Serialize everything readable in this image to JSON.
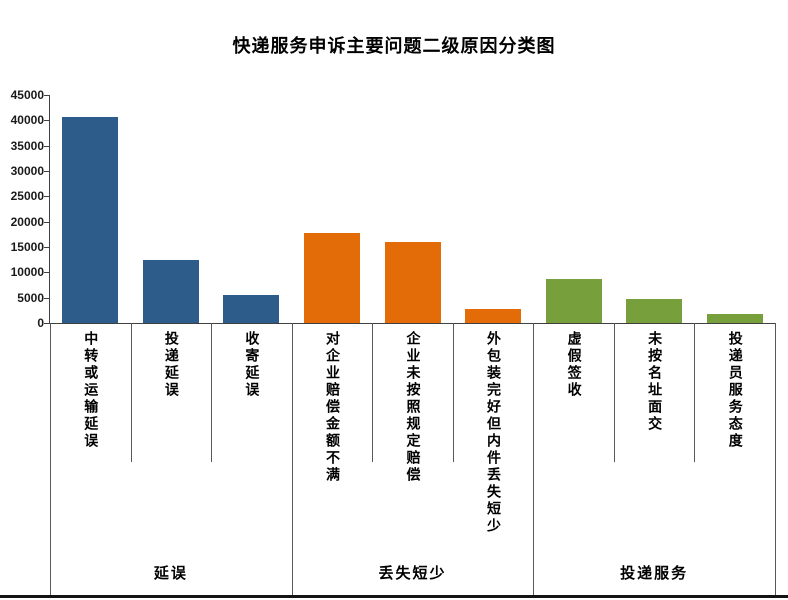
{
  "title": "快递服务申诉主要问题二级原因分类图",
  "colors": {
    "delay_blue": "#2E5C8A",
    "loss_orange": "#E36C09",
    "service_green": "#77A03C",
    "axis": "#404040",
    "separator": "#595959",
    "bottom_rule": "#141414",
    "text": "#000000"
  },
  "chart_data": {
    "type": "bar",
    "title": "快递服务申诉主要问题二级原因分类图",
    "xlabel": "",
    "ylabel": "",
    "ylim": [
      0,
      45000
    ],
    "yticks": [
      0,
      5000,
      10000,
      15000,
      20000,
      25000,
      30000,
      35000,
      40000,
      45000
    ],
    "grid": false,
    "legend": "none",
    "groups": [
      {
        "label": "延误",
        "color": "#2E5C8A",
        "categories": [
          "中转或运输延误",
          "投递延误",
          "收寄延误"
        ],
        "values": [
          40700,
          12500,
          5500
        ]
      },
      {
        "label": "丢失短少",
        "color": "#E36C09",
        "categories": [
          "对企业赔偿金额不满",
          "企业未按照规定赔偿",
          "外包装完好但内件丢失短少"
        ],
        "values": [
          17700,
          16000,
          2800
        ]
      },
      {
        "label": "投递服务",
        "color": "#77A03C",
        "categories": [
          "虚假签收",
          "未按名址面交",
          "投递员服务态度"
        ],
        "values": [
          8700,
          4800,
          1800
        ]
      }
    ]
  }
}
